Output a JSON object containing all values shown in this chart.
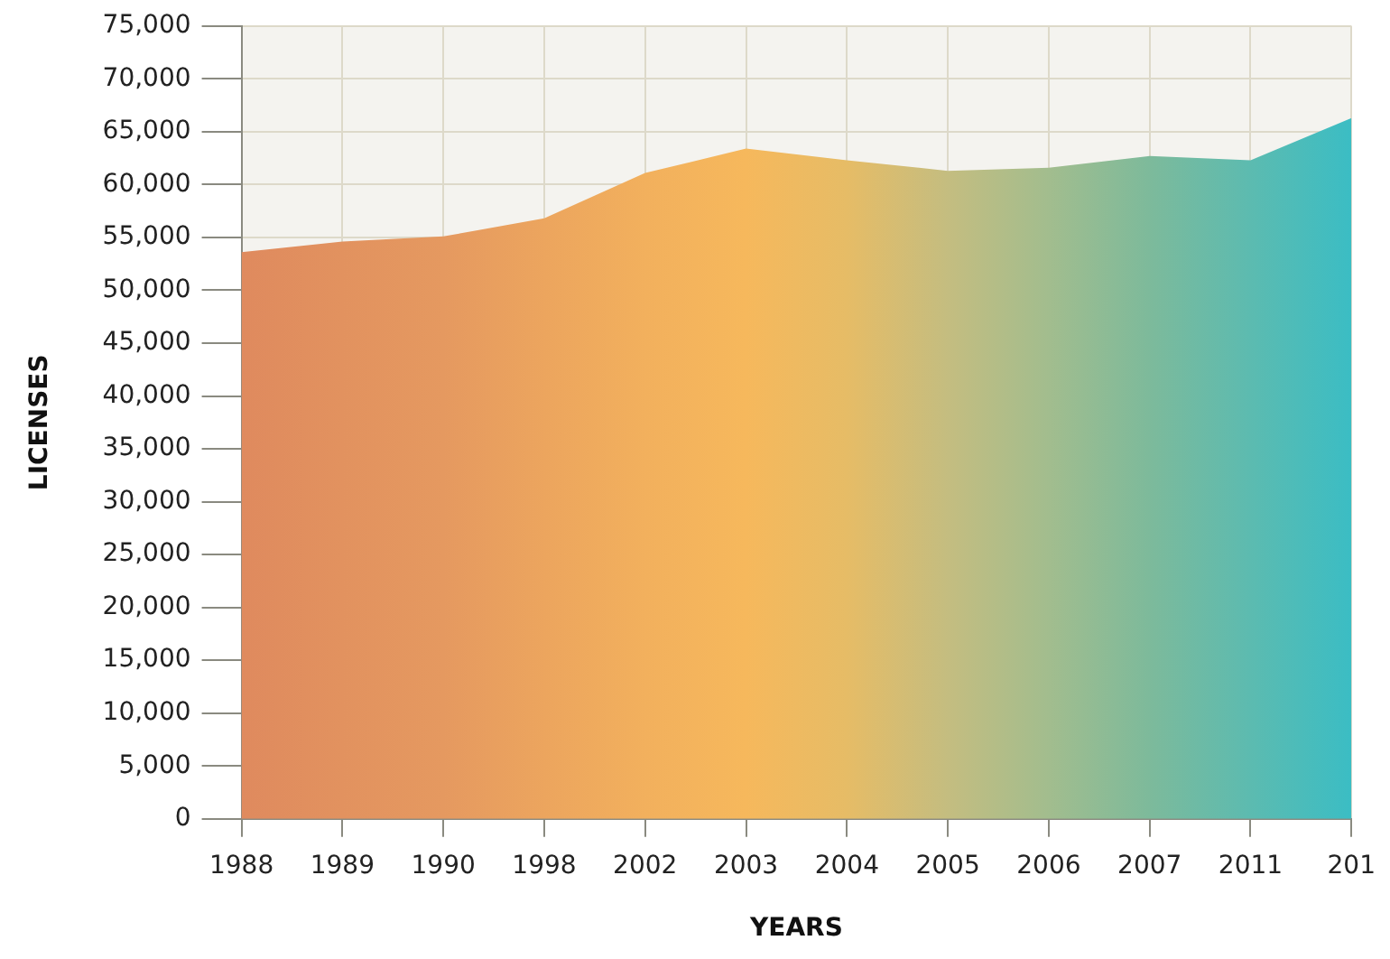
{
  "chart_data": {
    "type": "area",
    "xlabel": "YEARS",
    "ylabel": "LICENSES",
    "categories": [
      "1988",
      "1989",
      "1990",
      "1998",
      "2002",
      "2003",
      "2004",
      "2005",
      "2006",
      "2007",
      "2011",
      "201"
    ],
    "values": [
      53600,
      54600,
      55100,
      56800,
      61100,
      63400,
      62300,
      61300,
      61600,
      62700,
      62300,
      66300
    ],
    "colors": [
      "#df8a5e",
      "#e2925f",
      "#e59960",
      "#eca55e",
      "#f2b05d",
      "#f6b85c",
      "#e6bc66",
      "#c4bd80",
      "#a2bd8e",
      "#7dba9b",
      "#5cbbb0",
      "#3bbdc4"
    ],
    "ylim": [
      0,
      75000
    ],
    "yticks": [
      0,
      {
        "value": 5000,
        "label": "5,000"
      },
      {
        "value": 10000,
        "label": "10,000"
      },
      {
        "value": 15000,
        "label": "15,000"
      },
      {
        "value": 20000,
        "label": "20,000"
      },
      {
        "value": 25000,
        "label": "25,000"
      },
      {
        "value": 30000,
        "label": "30,000"
      },
      {
        "value": 35000,
        "label": "35,000"
      },
      {
        "value": 40000,
        "label": "40,000"
      },
      {
        "value": 45000,
        "label": "45,000"
      },
      {
        "value": 50000,
        "label": "50,000"
      },
      {
        "value": 55000,
        "label": "55,000"
      },
      {
        "value": 60000,
        "label": "60,000"
      },
      {
        "value": 65000,
        "label": "65,000"
      },
      {
        "value": 70000,
        "label": "70,000"
      },
      {
        "value": 75000,
        "label": "75,000"
      }
    ],
    "grid": true,
    "legend": false
  }
}
